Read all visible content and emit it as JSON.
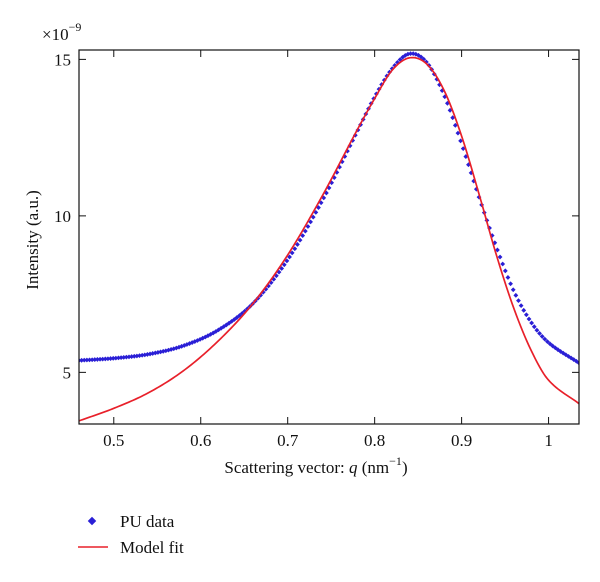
{
  "chart_data": {
    "type": "scatter",
    "xlabel": "Scattering vector: q (nm⁻¹)",
    "xlabel_parts": {
      "prefix": "Scattering vector: ",
      "var": "q",
      "open": " (nm",
      "sup": "−1",
      "close": ")"
    },
    "ylabel": "Intensity (a.u.)",
    "y_multiplier": {
      "base": "×10",
      "exp": "−9"
    },
    "xlim": [
      0.46,
      1.035
    ],
    "ylim": [
      3.35,
      15.3
    ],
    "x_ticks": [
      0.5,
      0.6,
      0.7,
      0.8,
      0.9,
      1.0
    ],
    "x_tick_labels": [
      "0.5",
      "0.6",
      "0.7",
      "0.8",
      "0.9",
      "1"
    ],
    "y_ticks": [
      5,
      10,
      15
    ],
    "y_tick_labels": [
      "5",
      "10",
      "15"
    ],
    "grid": false,
    "legend_position": "bottom-left",
    "series": [
      {
        "name": "PU data",
        "style": "markers",
        "color": "#2a1fd6",
        "points": [
          [
            0.46,
            5.38
          ],
          [
            0.5,
            5.45
          ],
          [
            0.54,
            5.58
          ],
          [
            0.58,
            5.85
          ],
          [
            0.62,
            6.35
          ],
          [
            0.66,
            7.2
          ],
          [
            0.7,
            8.6
          ],
          [
            0.74,
            10.5
          ],
          [
            0.78,
            12.7
          ],
          [
            0.8,
            13.8
          ],
          [
            0.82,
            14.7
          ],
          [
            0.84,
            15.18
          ],
          [
            0.86,
            14.9
          ],
          [
            0.88,
            13.85
          ],
          [
            0.9,
            12.3
          ],
          [
            0.92,
            10.6
          ],
          [
            0.94,
            9.0
          ],
          [
            0.96,
            7.6
          ],
          [
            0.98,
            6.6
          ],
          [
            1.0,
            5.95
          ],
          [
            1.035,
            5.3
          ]
        ]
      },
      {
        "name": "Model fit",
        "style": "line",
        "color": "#e8202a",
        "points": [
          [
            0.46,
            3.45
          ],
          [
            0.5,
            3.85
          ],
          [
            0.54,
            4.35
          ],
          [
            0.58,
            5.05
          ],
          [
            0.62,
            6.0
          ],
          [
            0.66,
            7.2
          ],
          [
            0.7,
            8.75
          ],
          [
            0.74,
            10.65
          ],
          [
            0.78,
            12.75
          ],
          [
            0.8,
            13.75
          ],
          [
            0.82,
            14.65
          ],
          [
            0.84,
            15.05
          ],
          [
            0.86,
            14.85
          ],
          [
            0.88,
            14.0
          ],
          [
            0.9,
            12.55
          ],
          [
            0.92,
            10.7
          ],
          [
            0.94,
            8.75
          ],
          [
            0.96,
            7.05
          ],
          [
            0.98,
            5.7
          ],
          [
            1.0,
            4.75
          ],
          [
            1.035,
            4.0
          ]
        ]
      }
    ]
  }
}
